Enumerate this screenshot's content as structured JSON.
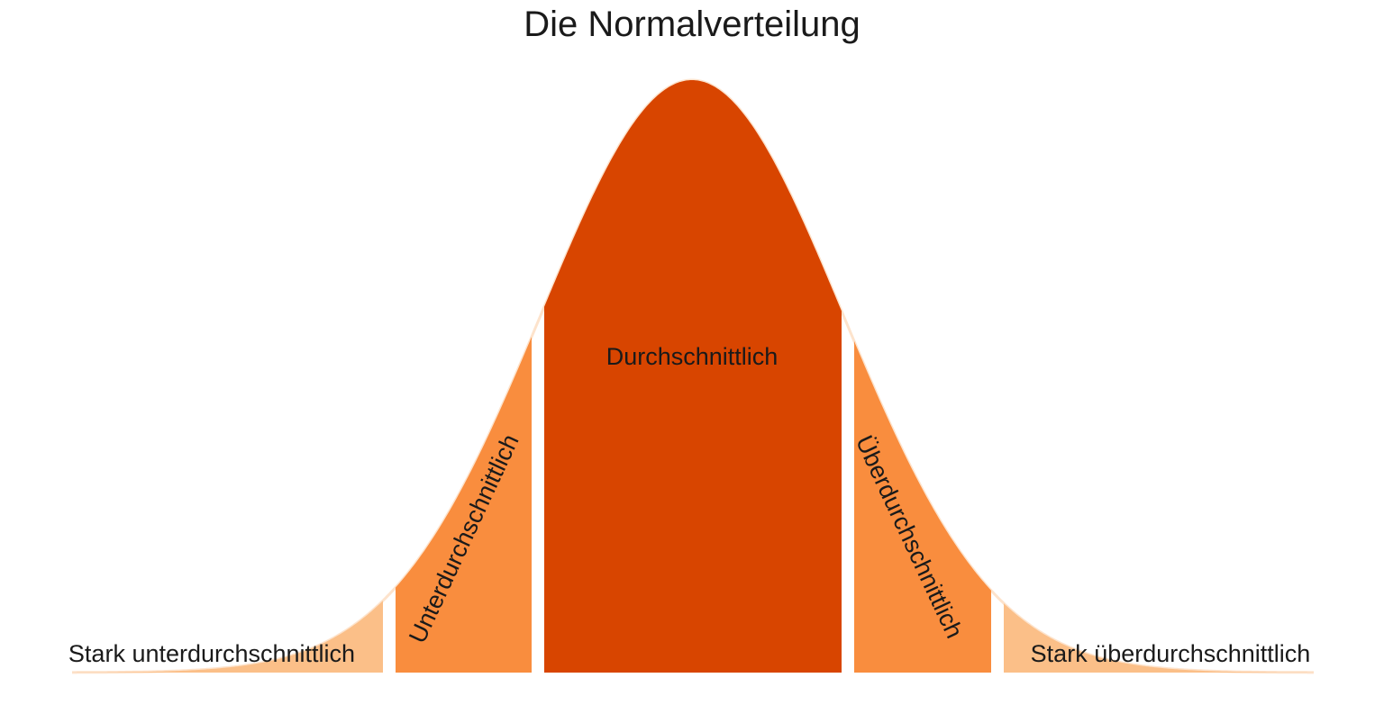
{
  "title": "Die Normalverteilung",
  "colors": {
    "extreme": "#fbbf88",
    "moderate": "#f98d3e",
    "center": "#d84500",
    "curve_edge": "#fde3cc",
    "background": "#ffffff"
  },
  "segments": [
    {
      "id": "stark-unter",
      "label": "Stark unterdurchschnittlich",
      "color_key": "extreme"
    },
    {
      "id": "unter",
      "label": "Unterdurchschnittlich",
      "color_key": "moderate"
    },
    {
      "id": "durchschnitt",
      "label": "Durchschnittlich",
      "color_key": "center"
    },
    {
      "id": "ueber",
      "label": "Überdurchschnittlich",
      "color_key": "moderate"
    },
    {
      "id": "stark-ueber",
      "label": "Stark überdurchschnittlich",
      "color_key": "extreme"
    }
  ]
}
